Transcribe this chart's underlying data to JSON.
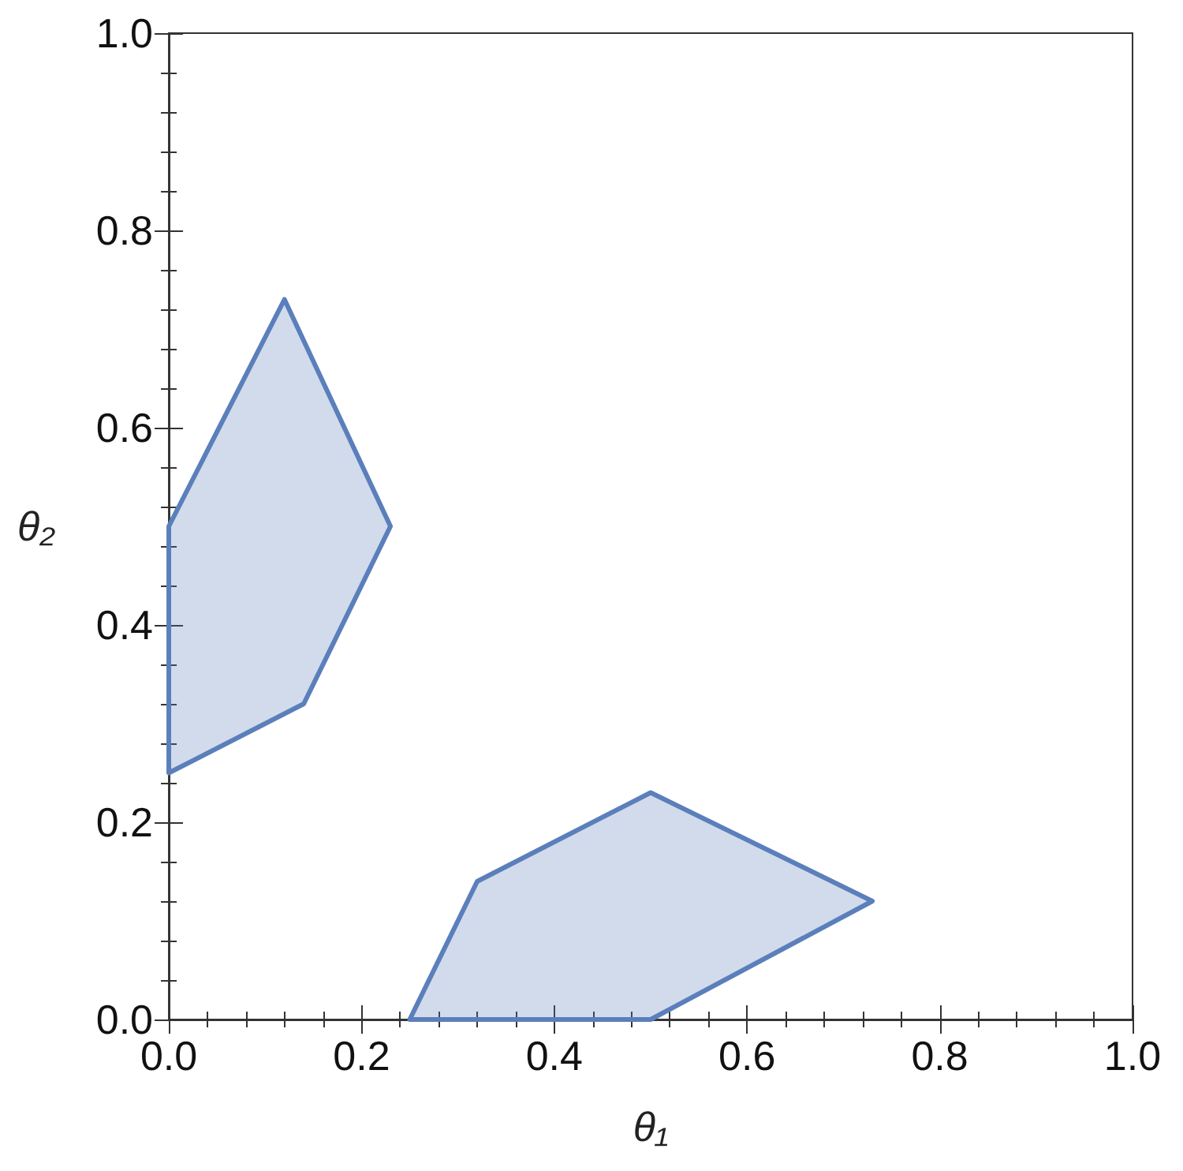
{
  "chart_data": {
    "type": "area",
    "xlabel": "θ₁",
    "ylabel": "θ₂",
    "series": [
      {
        "color": "#5b7fbb",
        "x": [
          0,
          0,
          0.12,
          0.23,
          0.14
        ],
        "values": [
          0.25,
          0.5,
          0.73,
          0.5,
          0.32
        ]
      },
      {
        "color": "#5b7fbb",
        "x": [
          0.25,
          0.32,
          0.5,
          0.73,
          0.5
        ],
        "values": [
          0,
          0.14,
          0.23,
          0.12,
          0
        ]
      }
    ],
    "xlim": [
      0,
      1
    ],
    "ylim": [
      0,
      1
    ],
    "xticks": [
      {
        "value": 0,
        "label": "0.0"
      },
      0.2,
      0.4,
      0.6,
      0.8,
      {
        "value": 1,
        "label": "1.0"
      }
    ],
    "yticks": [
      {
        "value": 0,
        "label": "0.0"
      },
      0.2,
      0.4,
      0.6,
      0.8,
      {
        "value": 1,
        "label": "1.0"
      }
    ],
    "grid": false
  }
}
